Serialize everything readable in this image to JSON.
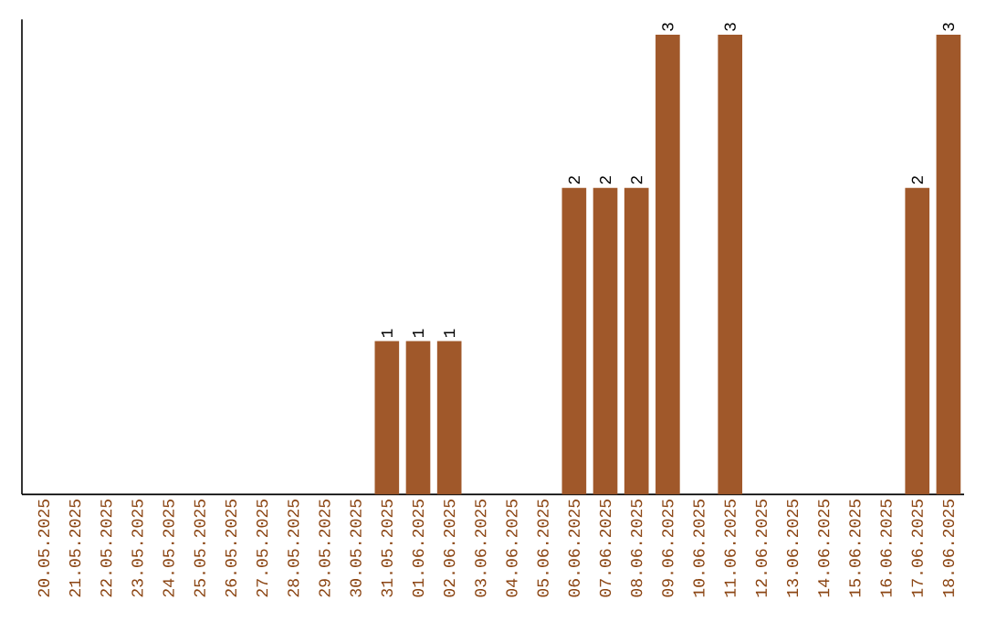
{
  "chart_data": {
    "type": "bar",
    "categories": [
      "20.05.2025",
      "21.05.2025",
      "22.05.2025",
      "23.05.2025",
      "24.05.2025",
      "25.05.2025",
      "26.05.2025",
      "27.05.2025",
      "28.05.2025",
      "29.05.2025",
      "30.05.2025",
      "31.05.2025",
      "01.06.2025",
      "02.06.2025",
      "03.06.2025",
      "04.06.2025",
      "05.06.2025",
      "06.06.2025",
      "07.06.2025",
      "08.06.2025",
      "09.06.2025",
      "10.06.2025",
      "11.06.2025",
      "12.06.2025",
      "13.06.2025",
      "14.06.2025",
      "15.06.2025",
      "16.06.2025",
      "17.06.2025",
      "18.06.2025"
    ],
    "values": [
      0,
      0,
      0,
      0,
      0,
      0,
      0,
      0,
      0,
      0,
      0,
      1,
      1,
      1,
      0,
      0,
      0,
      2,
      2,
      2,
      3,
      0,
      3,
      0,
      0,
      0,
      0,
      0,
      2,
      3
    ],
    "value_labels": [
      null,
      null,
      null,
      null,
      null,
      null,
      null,
      null,
      null,
      null,
      null,
      "1",
      "1",
      "1",
      null,
      null,
      null,
      "2",
      "2",
      "2",
      "3",
      null,
      "3",
      null,
      null,
      null,
      null,
      null,
      "2",
      "3"
    ],
    "color": "#a0582a",
    "ylim": [
      0,
      3.1
    ],
    "tick_labels": "x"
  }
}
